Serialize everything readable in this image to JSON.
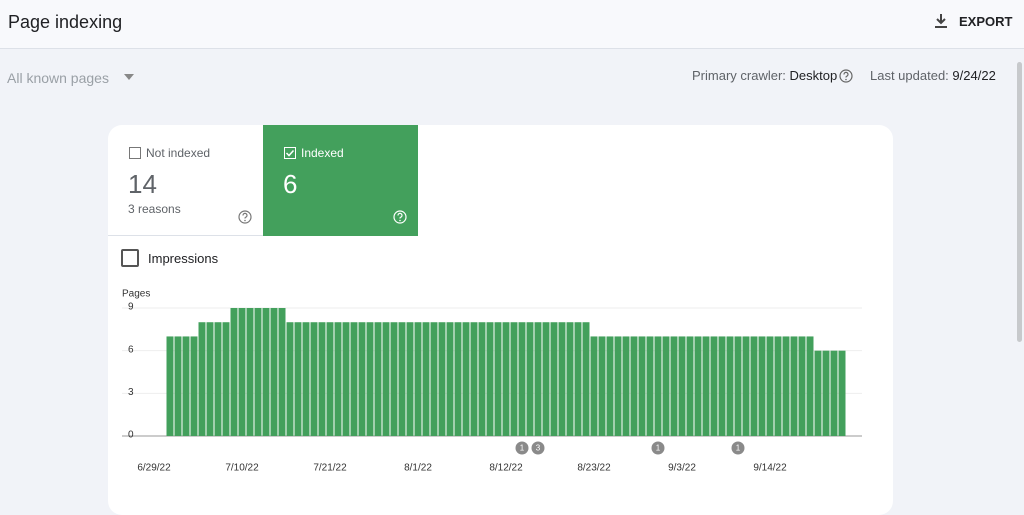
{
  "header": {
    "title": "Page indexing",
    "export": "EXPORT"
  },
  "toolbar": {
    "filter": "All known pages",
    "crawler_label": "Primary crawler:",
    "crawler": "Desktop",
    "updated_label": "Last updated:",
    "updated": "9/24/22"
  },
  "tabs": [
    {
      "label": "Not indexed",
      "value": 14,
      "note": "3 reasons"
    },
    {
      "label": "Indexed",
      "value": 6
    }
  ],
  "impressions": "Impressions",
  "chart_data": {
    "type": "bar",
    "y_label": "Pages",
    "color": "#43a05c",
    "grid": true,
    "ylim": [
      0,
      9
    ],
    "yticks": [
      0,
      3,
      6,
      9
    ],
    "categories": [
      "6/29/22",
      null,
      null,
      null,
      null,
      null,
      null,
      null,
      null,
      null,
      null,
      "7/10/22",
      null,
      null,
      null,
      null,
      null,
      null,
      null,
      null,
      null,
      null,
      "7/21/22",
      null,
      null,
      null,
      null,
      null,
      null,
      null,
      null,
      null,
      null,
      "8/1/22",
      null,
      null,
      null,
      null,
      null,
      null,
      null,
      null,
      null,
      null,
      "8/12/22",
      null,
      null,
      null,
      null,
      null,
      null,
      null,
      null,
      null,
      null,
      "8/23/22",
      null,
      null,
      null,
      null,
      null,
      null,
      null,
      null,
      null,
      null,
      "9/3/22",
      null,
      null,
      null,
      null,
      null,
      null,
      null,
      null,
      null,
      null,
      "9/14/22",
      null,
      null,
      null,
      null,
      null,
      null,
      null,
      null,
      null
    ],
    "values": [
      null,
      null,
      7,
      7,
      7,
      7,
      8,
      8,
      8,
      8,
      9,
      9,
      9,
      9,
      9,
      9,
      9,
      8,
      8,
      8,
      8,
      8,
      8,
      8,
      8,
      8,
      8,
      8,
      8,
      8,
      8,
      8,
      8,
      8,
      8,
      8,
      8,
      8,
      8,
      8,
      8,
      8,
      8,
      8,
      8,
      8,
      8,
      8,
      8,
      8,
      8,
      8,
      8,
      8,
      8,
      7,
      7,
      7,
      7,
      7,
      7,
      7,
      7,
      7,
      7,
      7,
      7,
      7,
      7,
      7,
      7,
      7,
      7,
      7,
      7,
      7,
      7,
      7,
      7,
      7,
      7,
      7,
      7,
      6,
      6,
      6,
      6
    ],
    "annotations": [
      1,
      3,
      1,
      1
    ]
  }
}
